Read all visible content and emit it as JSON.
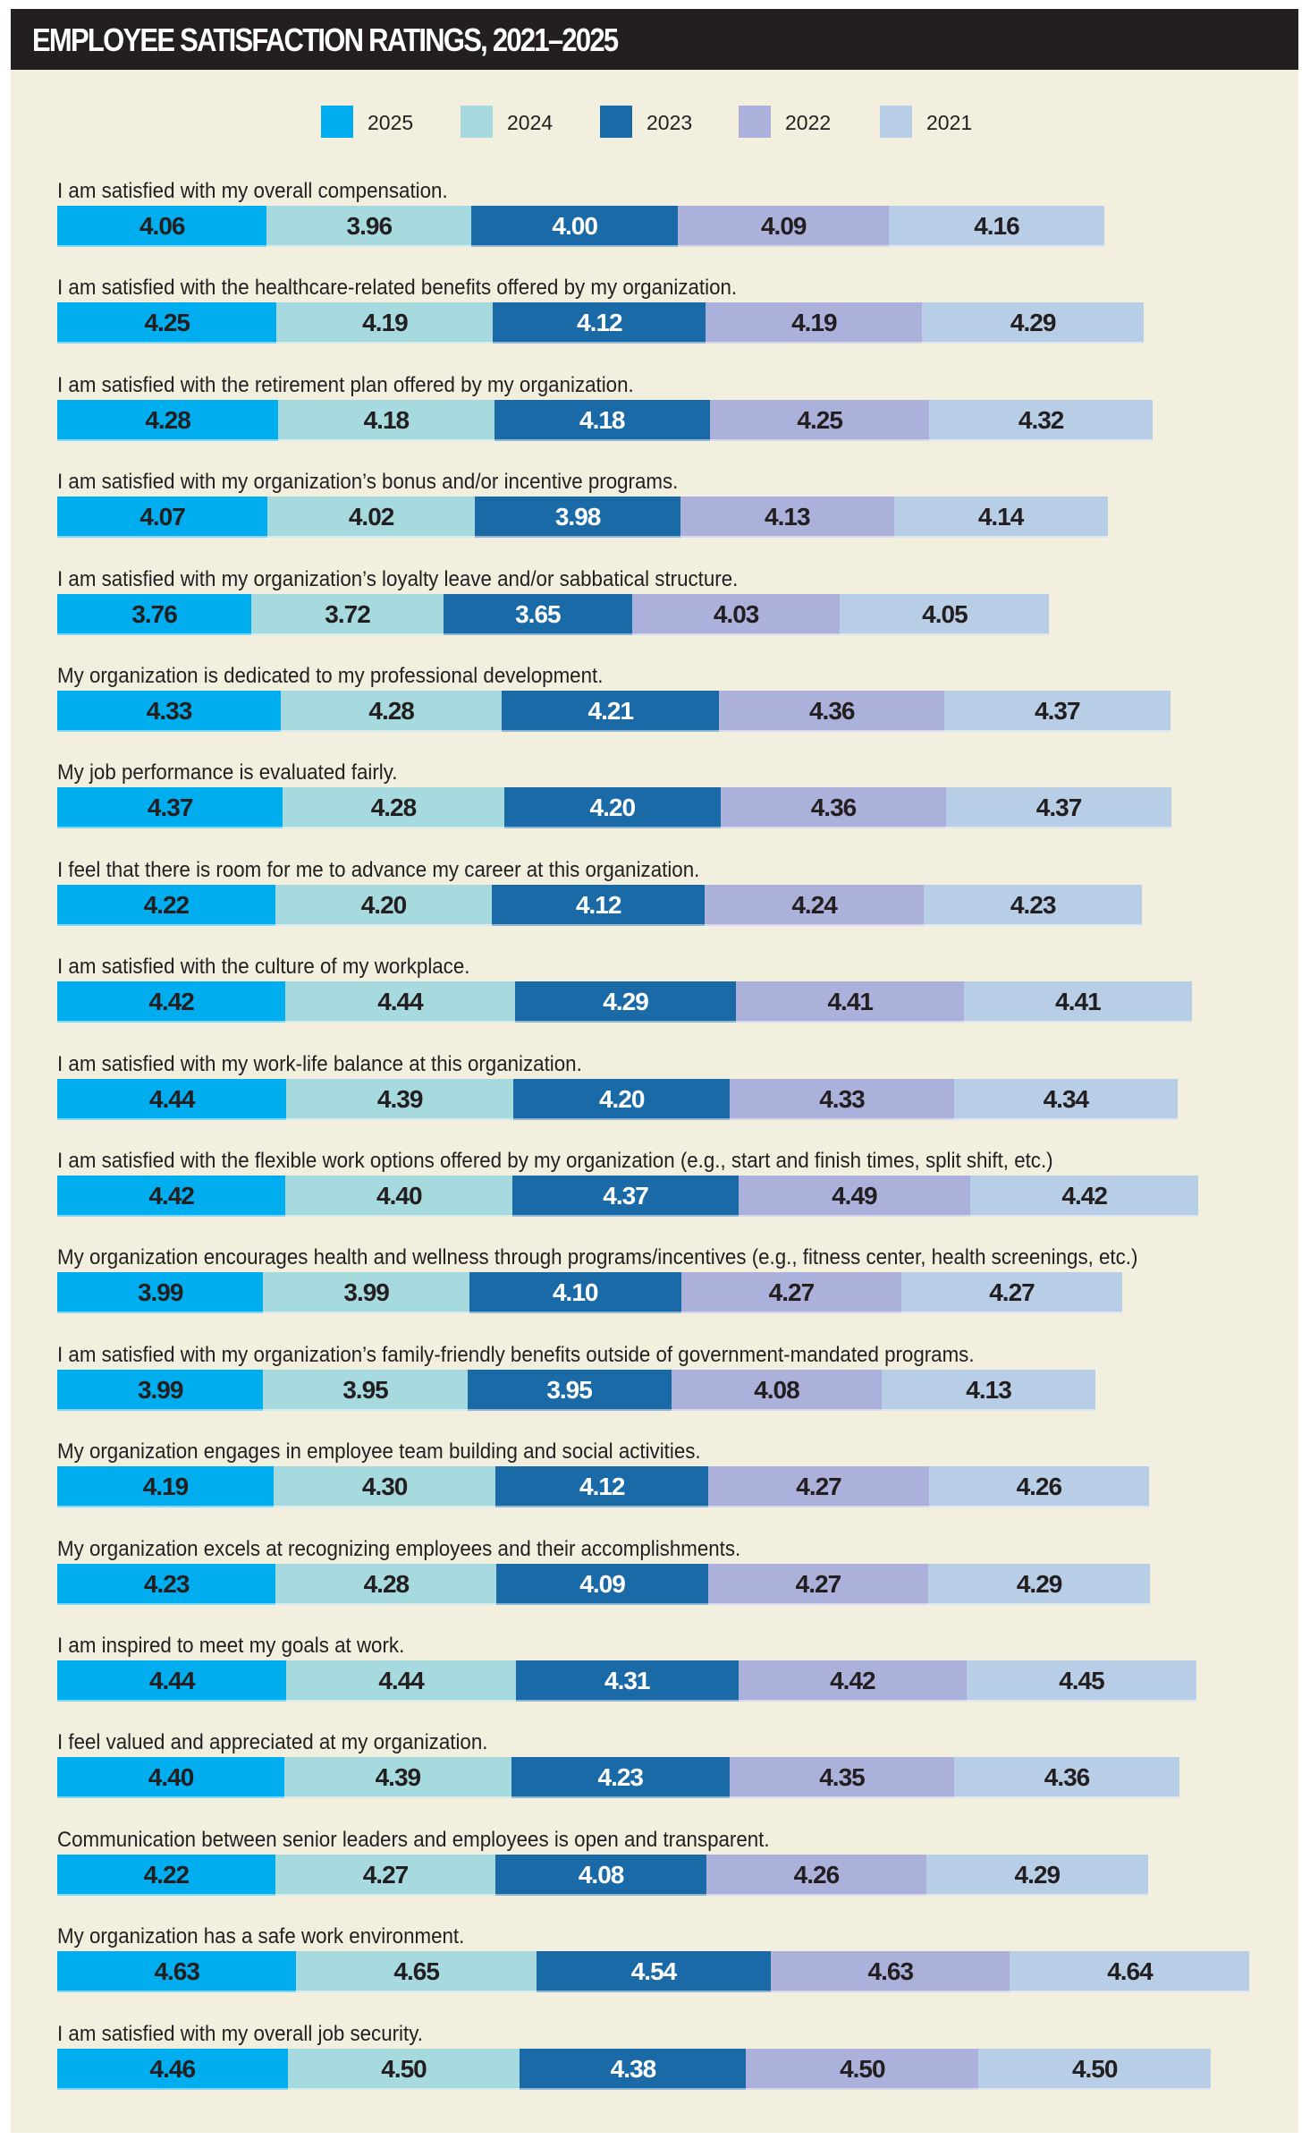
{
  "title": "EMPLOYEE SATISFACTION RATINGS, 2021–2025",
  "chart_data": {
    "type": "bar",
    "orientation": "horizontal-stacked",
    "title": "EMPLOYEE SATISFACTION RATINGS, 2021–2025",
    "xlabel": "",
    "ylabel": "",
    "legend_position": "top-center",
    "grid": false,
    "series": [
      {
        "name": "2025",
        "color": "#00adee",
        "text_color": "#231f20",
        "values": [
          4.06,
          4.25,
          4.28,
          4.07,
          3.76,
          4.33,
          4.37,
          4.22,
          4.42,
          4.44,
          4.42,
          3.99,
          3.99,
          4.19,
          4.23,
          4.44,
          4.4,
          4.22,
          4.63,
          4.46
        ]
      },
      {
        "name": "2024",
        "color": "#a6dadf",
        "text_color": "#231f20",
        "values": [
          3.96,
          4.19,
          4.18,
          4.02,
          3.72,
          4.28,
          4.28,
          4.2,
          4.44,
          4.39,
          4.4,
          3.99,
          3.95,
          4.3,
          4.28,
          4.44,
          4.39,
          4.27,
          4.65,
          4.5
        ]
      },
      {
        "name": "2023",
        "color": "#1a6aa8",
        "text_color": "#ffffff",
        "values": [
          4.0,
          4.12,
          4.18,
          3.98,
          3.65,
          4.21,
          4.2,
          4.12,
          4.29,
          4.2,
          4.37,
          4.1,
          3.95,
          4.12,
          4.09,
          4.31,
          4.23,
          4.08,
          4.54,
          4.38
        ]
      },
      {
        "name": "2022",
        "color": "#abb1da",
        "text_color": "#231f20",
        "values": [
          4.09,
          4.19,
          4.25,
          4.13,
          4.03,
          4.36,
          4.36,
          4.24,
          4.41,
          4.33,
          4.49,
          4.27,
          4.08,
          4.27,
          4.27,
          4.42,
          4.35,
          4.26,
          4.63,
          4.5
        ]
      },
      {
        "name": "2021",
        "color": "#b8cee6",
        "text_color": "#231f20",
        "values": [
          4.16,
          4.29,
          4.32,
          4.14,
          4.05,
          4.37,
          4.37,
          4.23,
          4.41,
          4.34,
          4.42,
          4.27,
          4.13,
          4.26,
          4.29,
          4.45,
          4.36,
          4.29,
          4.64,
          4.5
        ]
      }
    ],
    "categories": [
      "I am satisfied with my overall compensation.",
      "I am satisfied with the healthcare-related benefits offered by my organization.",
      "I am satisfied with the retirement plan offered by my organization.",
      "I am satisfied with my organization’s bonus and/or incentive programs.",
      "I am satisfied with my organization’s loyalty leave and/or sabbatical structure.",
      "My organization is dedicated to my professional development.",
      "My job performance is evaluated fairly.",
      "I feel that there is room for me to advance my career at this organization.",
      "I am satisfied with the culture of my workplace.",
      "I am satisfied with my work-life balance at this organization.",
      "I am satisfied with the flexible work options offered by my organization (e.g., start and finish times, split shift, etc.)",
      "My organization encourages health and wellness through programs/incentives (e.g., fitness center, health screenings, etc.)",
      "I am satisfied with my organization’s family-friendly benefits outside of government-mandated programs.",
      "My organization engages in employee team building and social activities.",
      "My organization excels at recognizing employees and their accomplishments.",
      "I am inspired to meet my goals at work.",
      "I feel valued and appreciated at my organization.",
      "Communication between senior leaders and employees is open and transparent.",
      "My organization has a safe work environment.",
      "I am satisfied with my overall job security."
    ]
  },
  "legend": [
    {
      "label": "2025",
      "color": "#00adee"
    },
    {
      "label": "2024",
      "color": "#a6dadf"
    },
    {
      "label": "2023",
      "color": "#1a6aa8"
    },
    {
      "label": "2022",
      "color": "#abb1da"
    },
    {
      "label": "2021",
      "color": "#b8cee6"
    }
  ],
  "colors": {
    "header_bg": "#231f20",
    "panel_bg": "#f2efdf",
    "text": "#231f20"
  }
}
